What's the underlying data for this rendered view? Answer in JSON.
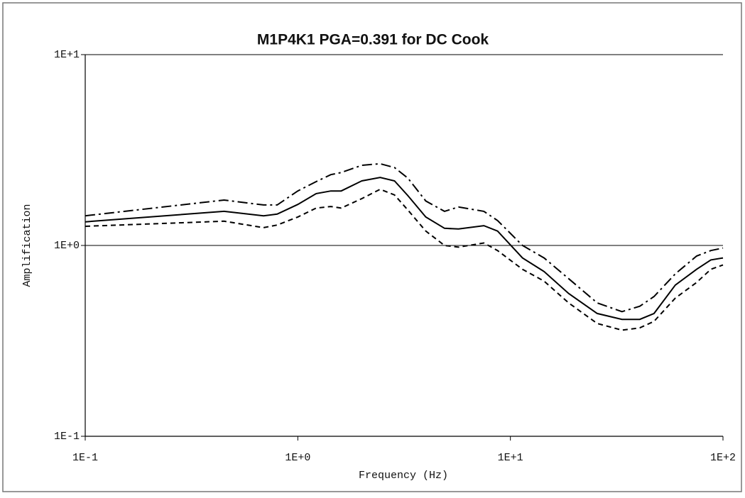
{
  "chart_data": {
    "type": "line",
    "title": "M1P4K1 PGA=0.391 for DC Cook",
    "x_label": "Frequency (Hz)",
    "y_label": "Amplification",
    "log_x": true,
    "log_y": true,
    "xlim": [
      0.1,
      100
    ],
    "ylim": [
      0.1,
      10
    ],
    "xticks": [
      {
        "value": 0.1,
        "label": "1E-1"
      },
      {
        "value": 1,
        "label": "1E+0"
      },
      {
        "value": 10,
        "label": "1E+1"
      },
      {
        "value": 100,
        "label": "1E+2"
      }
    ],
    "yticks": [
      {
        "value": 0.1,
        "label": "1E-1"
      },
      {
        "value": 1,
        "label": "1E+0"
      },
      {
        "value": 10,
        "label": "1E+1"
      }
    ],
    "grid": true,
    "x": [
      0.1,
      0.45,
      0.69,
      0.8,
      1.0,
      1.22,
      1.43,
      1.6,
      2.0,
      2.44,
      2.85,
      3.3,
      4.0,
      4.9,
      5.7,
      7.5,
      8.7,
      11.4,
      14.4,
      18.8,
      25.6,
      33.5,
      40.6,
      47.4,
      59.7,
      75.2,
      87.7,
      100
    ],
    "series": [
      {
        "color": "#000000",
        "dash": "dashdot",
        "values": [
          1.43,
          1.73,
          1.63,
          1.63,
          1.93,
          2.16,
          2.35,
          2.41,
          2.63,
          2.68,
          2.56,
          2.25,
          1.71,
          1.51,
          1.59,
          1.51,
          1.35,
          1.0,
          0.86,
          0.67,
          0.5,
          0.45,
          0.48,
          0.54,
          0.71,
          0.88,
          0.94,
          0.97
        ]
      },
      {
        "color": "#000000",
        "dash": "solid",
        "values": [
          1.33,
          1.51,
          1.43,
          1.46,
          1.64,
          1.87,
          1.93,
          1.93,
          2.18,
          2.27,
          2.18,
          1.82,
          1.41,
          1.23,
          1.22,
          1.27,
          1.19,
          0.86,
          0.73,
          0.56,
          0.44,
          0.41,
          0.41,
          0.44,
          0.62,
          0.75,
          0.84,
          0.86
        ]
      },
      {
        "color": "#000000",
        "dash": "dashed",
        "values": [
          1.26,
          1.34,
          1.24,
          1.28,
          1.41,
          1.57,
          1.6,
          1.57,
          1.76,
          1.97,
          1.84,
          1.53,
          1.19,
          1.0,
          0.98,
          1.03,
          0.94,
          0.75,
          0.65,
          0.5,
          0.39,
          0.36,
          0.37,
          0.4,
          0.53,
          0.64,
          0.75,
          0.79
        ]
      }
    ]
  }
}
